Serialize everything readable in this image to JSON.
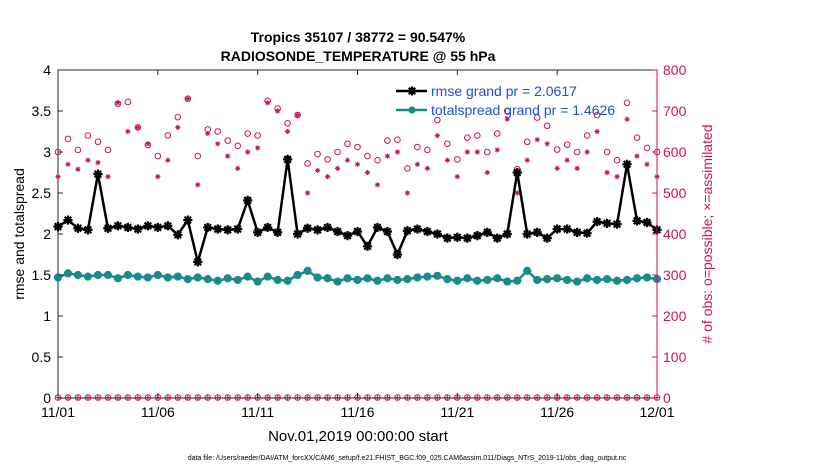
{
  "chart_data": {
    "type": "line",
    "title_line1": "Tropics 35107 / 38772 = 90.547%",
    "title_line2": "RADIOSONDE_TEMPERATURE @ 55 hPa",
    "xlabel": "Nov.01,2019 00:00:00 start",
    "ylabel_left": "rmse and totalspread",
    "ylabel_right": "# of obs: o=possible; ×=assimilated",
    "footnote": "data file: /Users/raeder/DAI/ATM_forcXX/CAM6_setup/f.e21.FHIST_BGC.f09_025.CAM6assim.011/Diags_NTrS_2019-11/obs_diag_output.nc",
    "xlim": [
      0,
      30
    ],
    "ylim_left": [
      0,
      4
    ],
    "ylim_right": [
      0,
      800
    ],
    "xticks": [
      0,
      5,
      10,
      15,
      20,
      25,
      30
    ],
    "xtick_labels": [
      "11/01",
      "11/06",
      "11/11",
      "11/16",
      "11/21",
      "11/26",
      "12/01"
    ],
    "yticks_left": [
      0,
      0.5,
      1,
      1.5,
      2,
      2.5,
      3,
      3.5,
      4
    ],
    "ytick_labels_left": [
      "0",
      "0.5",
      "1",
      "1.5",
      "2",
      "2.5",
      "3",
      "3.5",
      "4"
    ],
    "yticks_right": [
      0,
      100,
      200,
      300,
      400,
      500,
      600,
      700,
      800
    ],
    "ytick_labels_right": [
      "0",
      "100",
      "200",
      "300",
      "400",
      "500",
      "600",
      "700",
      "800"
    ],
    "legend": [
      {
        "label": "rmse grand pr = 2.0617",
        "color": "#000000",
        "marker": "star"
      },
      {
        "label": "totalspread grand pr = 1.4626",
        "color": "#1a8a8a",
        "marker": "circle"
      }
    ],
    "colors": {
      "rmse": "#000000",
      "totalspread": "#1a8a8a",
      "obs": "#cc1455",
      "legend_text": "#1f4fd6",
      "right_axis": "#cc1455"
    },
    "x": [
      0,
      0.5,
      1,
      1.5,
      2,
      2.5,
      3,
      3.5,
      4,
      4.5,
      5,
      5.5,
      6,
      6.5,
      7,
      7.5,
      8,
      8.5,
      9,
      9.5,
      10,
      10.5,
      11,
      11.5,
      12,
      12.5,
      13,
      13.5,
      14,
      14.5,
      15,
      15.5,
      16,
      16.5,
      17,
      17.5,
      18,
      18.5,
      19,
      19.5,
      20,
      20.5,
      21,
      21.5,
      22,
      22.5,
      23,
      23.5,
      24,
      24.5,
      25,
      25.5,
      26,
      26.5,
      27,
      27.5,
      28,
      28.5,
      29,
      29.5,
      30
    ],
    "series": [
      {
        "name": "rmse",
        "values": [
          2.09,
          2.17,
          2.07,
          2.05,
          2.73,
          2.07,
          2.1,
          2.08,
          2.06,
          2.1,
          2.08,
          2.1,
          1.99,
          2.17,
          1.66,
          2.08,
          2.06,
          2.05,
          2.06,
          2.41,
          2.02,
          2.08,
          2.02,
          2.91,
          2.0,
          2.07,
          2.05,
          2.08,
          2.03,
          1.98,
          2.03,
          1.85,
          2.08,
          2.03,
          1.75,
          2.04,
          2.06,
          2.03,
          2.0,
          1.95,
          1.96,
          1.95,
          1.98,
          2.02,
          1.95,
          2.0,
          2.75,
          2.0,
          2.02,
          1.95,
          2.06,
          2.06,
          2.02,
          2.01,
          2.15,
          2.13,
          2.12,
          2.85,
          2.16,
          2.14,
          2.05
        ]
      },
      {
        "name": "totalspread",
        "values": [
          1.47,
          1.52,
          1.5,
          1.48,
          1.5,
          1.5,
          1.46,
          1.5,
          1.48,
          1.47,
          1.5,
          1.47,
          1.48,
          1.45,
          1.47,
          1.45,
          1.43,
          1.46,
          1.44,
          1.48,
          1.42,
          1.48,
          1.44,
          1.43,
          1.5,
          1.55,
          1.47,
          1.46,
          1.42,
          1.46,
          1.44,
          1.46,
          1.43,
          1.46,
          1.44,
          1.45,
          1.47,
          1.48,
          1.49,
          1.45,
          1.43,
          1.46,
          1.43,
          1.44,
          1.46,
          1.42,
          1.43,
          1.55,
          1.44,
          1.45,
          1.46,
          1.44,
          1.42,
          1.46,
          1.44,
          1.45,
          1.43,
          1.44,
          1.46,
          1.47,
          1.45
        ]
      }
    ],
    "obs_possible_values": [
      600,
      632,
      605,
      640,
      625,
      605,
      718,
      722,
      660,
      617,
      590,
      640,
      685,
      730,
      590,
      655,
      650,
      628,
      615,
      645,
      640,
      725,
      706,
      670,
      690,
      572,
      595,
      582,
      600,
      620,
      612,
      590,
      580,
      628,
      630,
      560,
      612,
      605,
      678,
      620,
      582,
      635,
      640,
      600,
      645,
      700,
      558,
      625,
      684,
      664,
      606,
      618,
      600,
      640,
      690,
      600,
      580,
      720,
      635,
      610,
      600
    ],
    "obs_assimilated_values": [
      540,
      570,
      558,
      580,
      574,
      540,
      720,
      650,
      660,
      620,
      540,
      580,
      660,
      730,
      520,
      645,
      620,
      590,
      560,
      600,
      610,
      720,
      700,
      650,
      690,
      500,
      555,
      540,
      560,
      580,
      570,
      550,
      520,
      590,
      600,
      500,
      570,
      560,
      640,
      580,
      540,
      600,
      600,
      550,
      605,
      680,
      500,
      580,
      630,
      620,
      560,
      580,
      560,
      600,
      650,
      550,
      540,
      680,
      590,
      570,
      540
    ]
  }
}
